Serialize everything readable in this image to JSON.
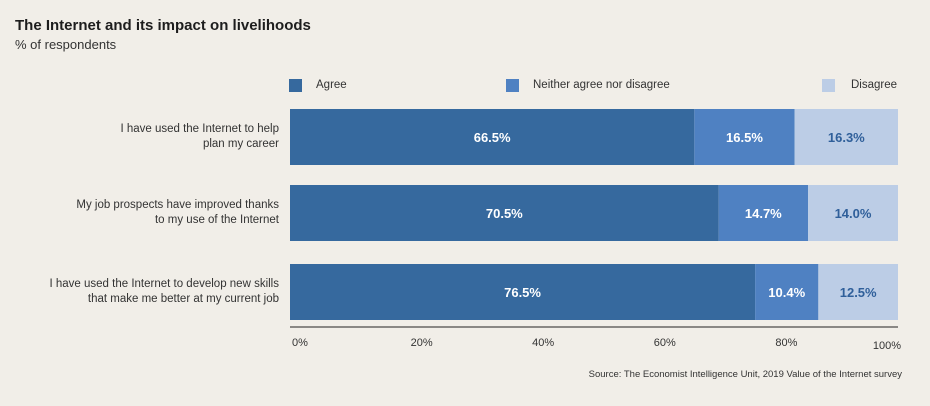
{
  "header": {
    "title": "The Internet and its impact on livelihoods",
    "subtitle": "% of respondents"
  },
  "colors": {
    "agree": "#36699e",
    "neither": "#4f81c2",
    "disagree": "#bccde6",
    "background": "#f1eee8"
  },
  "chart_data": {
    "type": "bar",
    "orientation": "horizontal",
    "stacked": true,
    "categories": [
      "I have used the Internet to help plan my career",
      "My job prospects have improved thanks to my use of the Internet",
      "I have used the Internet to develop new skills that make me better at my current job"
    ],
    "category_lines": [
      [
        "I have used the Internet to help",
        "plan my career"
      ],
      [
        "My job prospects have improved thanks",
        "to my use of the Internet"
      ],
      [
        "I have used the Internet to develop new skills",
        "that make me better at my current job"
      ]
    ],
    "series": [
      {
        "name": "Agree",
        "values": [
          66.5,
          70.5,
          76.5
        ],
        "labels": [
          "66.5%",
          "70.5%",
          "76.5%"
        ]
      },
      {
        "name": "Neither agree nor disagree",
        "values": [
          16.5,
          14.7,
          10.4
        ],
        "labels": [
          "16.5%",
          "14.7%",
          "10.4%"
        ]
      },
      {
        "name": "Disagree",
        "values": [
          16.3,
          14.0,
          12.5
        ],
        "labels": [
          "16.3%",
          "14.0%",
          "12.5%"
        ]
      }
    ],
    "x_ticks": [
      "0%",
      "20%",
      "40%",
      "60%",
      "80%",
      "100%"
    ],
    "x_tick_values": [
      0,
      20,
      40,
      60,
      80,
      100
    ],
    "xlim": [
      0,
      100
    ],
    "legend_position": "top",
    "grid": false
  },
  "footer": {
    "source": "Source: The Economist Intelligence Unit, 2019 Value of the Internet survey"
  }
}
